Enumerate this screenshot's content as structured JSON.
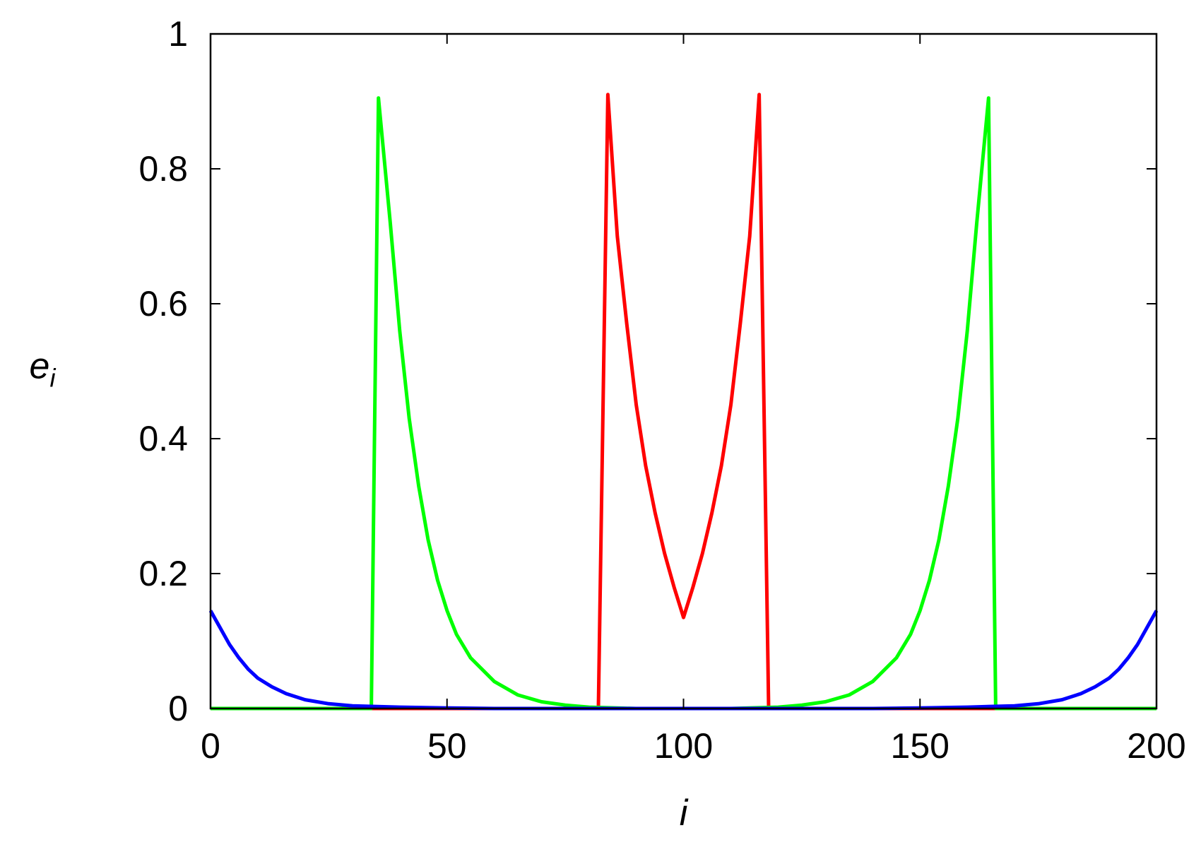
{
  "chart_data": {
    "type": "line",
    "xlabel": "i",
    "ylabel": {
      "base": "e",
      "subscript": "i"
    },
    "xlim": [
      0,
      200
    ],
    "ylim": [
      0,
      1
    ],
    "xticks": [
      0,
      50,
      100,
      150,
      200
    ],
    "xtick_labels": [
      "0",
      "50",
      "100",
      "150",
      "200"
    ],
    "yticks": [
      0,
      0.2,
      0.4,
      0.6,
      0.8,
      1
    ],
    "ytick_labels": [
      "0",
      "0.2",
      "0.4",
      "0.6",
      "0.8",
      "1"
    ],
    "grid": false,
    "legend": "none",
    "series": [
      {
        "color": "#ff0000",
        "points": [
          [
            0,
            0
          ],
          [
            82,
            0
          ],
          [
            84,
            0.91
          ],
          [
            86,
            0.7
          ],
          [
            88,
            0.57
          ],
          [
            90,
            0.45
          ],
          [
            92,
            0.36
          ],
          [
            94,
            0.29
          ],
          [
            96,
            0.23
          ],
          [
            98,
            0.18
          ],
          [
            100,
            0.135
          ],
          [
            102,
            0.18
          ],
          [
            104,
            0.23
          ],
          [
            106,
            0.29
          ],
          [
            108,
            0.36
          ],
          [
            110,
            0.45
          ],
          [
            112,
            0.57
          ],
          [
            114,
            0.7
          ],
          [
            116,
            0.91
          ],
          [
            118,
            0
          ],
          [
            200,
            0
          ]
        ]
      },
      {
        "color": "#00ff00",
        "points": [
          [
            0,
            0
          ],
          [
            34,
            0
          ],
          [
            35.5,
            0.905
          ],
          [
            38,
            0.72
          ],
          [
            40,
            0.56
          ],
          [
            42,
            0.43
          ],
          [
            44,
            0.33
          ],
          [
            46,
            0.25
          ],
          [
            48,
            0.19
          ],
          [
            50,
            0.145
          ],
          [
            52,
            0.11
          ],
          [
            55,
            0.075
          ],
          [
            60,
            0.04
          ],
          [
            65,
            0.02
          ],
          [
            70,
            0.01
          ],
          [
            75,
            0.005
          ],
          [
            80,
            0.002
          ],
          [
            90,
            0
          ],
          [
            110,
            0
          ],
          [
            120,
            0.002
          ],
          [
            125,
            0.005
          ],
          [
            130,
            0.01
          ],
          [
            135,
            0.02
          ],
          [
            140,
            0.04
          ],
          [
            145,
            0.075
          ],
          [
            148,
            0.11
          ],
          [
            150,
            0.145
          ],
          [
            152,
            0.19
          ],
          [
            154,
            0.25
          ],
          [
            156,
            0.33
          ],
          [
            158,
            0.43
          ],
          [
            160,
            0.56
          ],
          [
            162,
            0.72
          ],
          [
            164.5,
            0.905
          ],
          [
            166,
            0
          ],
          [
            200,
            0
          ]
        ]
      },
      {
        "color": "#0000ff",
        "points": [
          [
            0,
            0.145
          ],
          [
            2,
            0.12
          ],
          [
            4,
            0.095
          ],
          [
            6,
            0.075
          ],
          [
            8,
            0.058
          ],
          [
            10,
            0.045
          ],
          [
            13,
            0.032
          ],
          [
            16,
            0.022
          ],
          [
            20,
            0.013
          ],
          [
            25,
            0.007
          ],
          [
            30,
            0.004
          ],
          [
            40,
            0.002
          ],
          [
            50,
            0.0008
          ],
          [
            60,
            0
          ],
          [
            140,
            0
          ],
          [
            150,
            0.0008
          ],
          [
            160,
            0.002
          ],
          [
            170,
            0.004
          ],
          [
            175,
            0.007
          ],
          [
            180,
            0.013
          ],
          [
            184,
            0.022
          ],
          [
            187,
            0.032
          ],
          [
            190,
            0.045
          ],
          [
            192,
            0.058
          ],
          [
            194,
            0.075
          ],
          [
            196,
            0.095
          ],
          [
            198,
            0.12
          ],
          [
            200,
            0.145
          ]
        ]
      }
    ]
  }
}
